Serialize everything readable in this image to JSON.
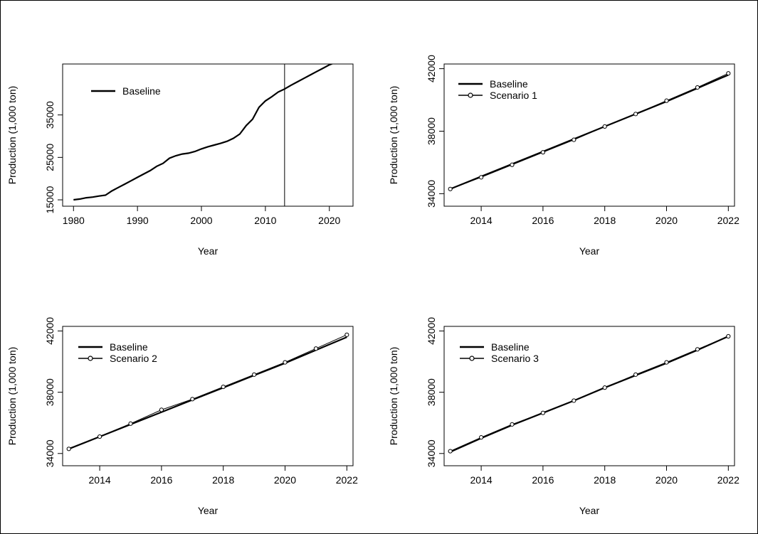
{
  "chart_data": [
    {
      "type": "line",
      "xlabel": "Year",
      "ylabel": "Production (1,000 ton)",
      "xlim": [
        1978.3,
        2023.7
      ],
      "ylim": [
        13500,
        47000
      ],
      "xticks": [
        1980,
        1990,
        2000,
        2010,
        2020
      ],
      "yticks": [
        15000,
        25000,
        35000
      ],
      "ytick_labels": [
        "15000",
        "25000",
        "35000"
      ],
      "vline": 2013,
      "legend": {
        "position": "top-left",
        "entries": [
          "Baseline"
        ]
      },
      "series": [
        {
          "name": "Baseline",
          "marker": "none",
          "x": [
            1980,
            1981,
            1982,
            1983,
            1984,
            1985,
            1986,
            1987,
            1988,
            1989,
            1990,
            1991,
            1992,
            1993,
            1994,
            1995,
            1996,
            1997,
            1998,
            1999,
            2000,
            2001,
            2002,
            2003,
            2004,
            2005,
            2006,
            2007,
            2008,
            2009,
            2010,
            2011,
            2012,
            2013,
            2014,
            2015,
            2016,
            2017,
            2018,
            2019,
            2020,
            2021,
            2022
          ],
          "values": [
            15000,
            15200,
            15500,
            15650,
            15900,
            16100,
            17100,
            17900,
            18700,
            19500,
            20300,
            21100,
            21900,
            22900,
            23600,
            24800,
            25400,
            25800,
            26000,
            26400,
            27000,
            27500,
            27900,
            28300,
            28800,
            29500,
            30500,
            32500,
            34000,
            36800,
            38300,
            39300,
            40400,
            41100,
            42000,
            42800,
            43600,
            44400,
            45200,
            46000,
            46800,
            47400,
            48000
          ]
        }
      ]
    },
    {
      "type": "line",
      "xlabel": "Year",
      "ylabel": "Production (1,000 ton)",
      "xlim": [
        2012.8,
        2022.2
      ],
      "ylim": [
        33200,
        42300
      ],
      "xticks": [
        2014,
        2016,
        2018,
        2020,
        2022
      ],
      "yticks": [
        34000,
        38000,
        42000
      ],
      "ytick_labels": [
        "34000",
        "38000",
        "42000"
      ],
      "legend": {
        "position": "top-left",
        "entries": [
          "Baseline",
          "Scenario 1"
        ]
      },
      "series": [
        {
          "name": "Baseline",
          "marker": "none",
          "x": [
            2013,
            2014,
            2015,
            2016,
            2017,
            2018,
            2019,
            2020,
            2021,
            2022
          ],
          "values": [
            34300,
            35100,
            35900,
            36700,
            37500,
            38300,
            39100,
            39900,
            40750,
            41600
          ]
        },
        {
          "name": "Scenario 1",
          "marker": "circle",
          "x": [
            2013,
            2014,
            2015,
            2016,
            2017,
            2018,
            2019,
            2020,
            2021,
            2022
          ],
          "values": [
            34300,
            35050,
            35850,
            36650,
            37450,
            38300,
            39100,
            39950,
            40800,
            41700
          ]
        }
      ]
    },
    {
      "type": "line",
      "xlabel": "Year",
      "ylabel": "Production (1,000 ton)",
      "xlim": [
        2012.8,
        2022.2
      ],
      "ylim": [
        33200,
        42300
      ],
      "xticks": [
        2014,
        2016,
        2018,
        2020,
        2022
      ],
      "yticks": [
        34000,
        38000,
        42000
      ],
      "ytick_labels": [
        "34000",
        "38000",
        "42000"
      ],
      "legend": {
        "position": "top-left",
        "entries": [
          "Baseline",
          "Scenario 2"
        ]
      },
      "series": [
        {
          "name": "Baseline",
          "marker": "none",
          "x": [
            2013,
            2014,
            2015,
            2016,
            2017,
            2018,
            2019,
            2020,
            2021,
            2022
          ],
          "values": [
            34300,
            35100,
            35900,
            36700,
            37500,
            38300,
            39100,
            39900,
            40750,
            41600
          ]
        },
        {
          "name": "Scenario 2",
          "marker": "circle",
          "x": [
            2013,
            2014,
            2015,
            2016,
            2017,
            2018,
            2019,
            2020,
            2021,
            2022
          ],
          "values": [
            34300,
            35100,
            35950,
            36850,
            37550,
            38350,
            39150,
            39950,
            40850,
            41750
          ]
        }
      ]
    },
    {
      "type": "line",
      "xlabel": "Year",
      "ylabel": "Production (1,000 ton)",
      "xlim": [
        2012.8,
        2022.2
      ],
      "ylim": [
        33200,
        42300
      ],
      "xticks": [
        2014,
        2016,
        2018,
        2020,
        2022
      ],
      "yticks": [
        34000,
        38000,
        42000
      ],
      "ytick_labels": [
        "34000",
        "38000",
        "42000"
      ],
      "legend": {
        "position": "top-left",
        "entries": [
          "Baseline",
          "Scenario 3"
        ]
      },
      "series": [
        {
          "name": "Baseline",
          "marker": "none",
          "x": [
            2013,
            2014,
            2015,
            2016,
            2017,
            2018,
            2019,
            2020,
            2021,
            2022
          ],
          "values": [
            34100,
            35000,
            35850,
            36650,
            37450,
            38300,
            39100,
            39900,
            40750,
            41650
          ]
        },
        {
          "name": "Scenario 3",
          "marker": "circle",
          "x": [
            2013,
            2014,
            2015,
            2016,
            2017,
            2018,
            2019,
            2020,
            2021,
            2022
          ],
          "values": [
            34150,
            35050,
            35900,
            36650,
            37450,
            38300,
            39150,
            39950,
            40800,
            41650
          ]
        }
      ]
    }
  ]
}
